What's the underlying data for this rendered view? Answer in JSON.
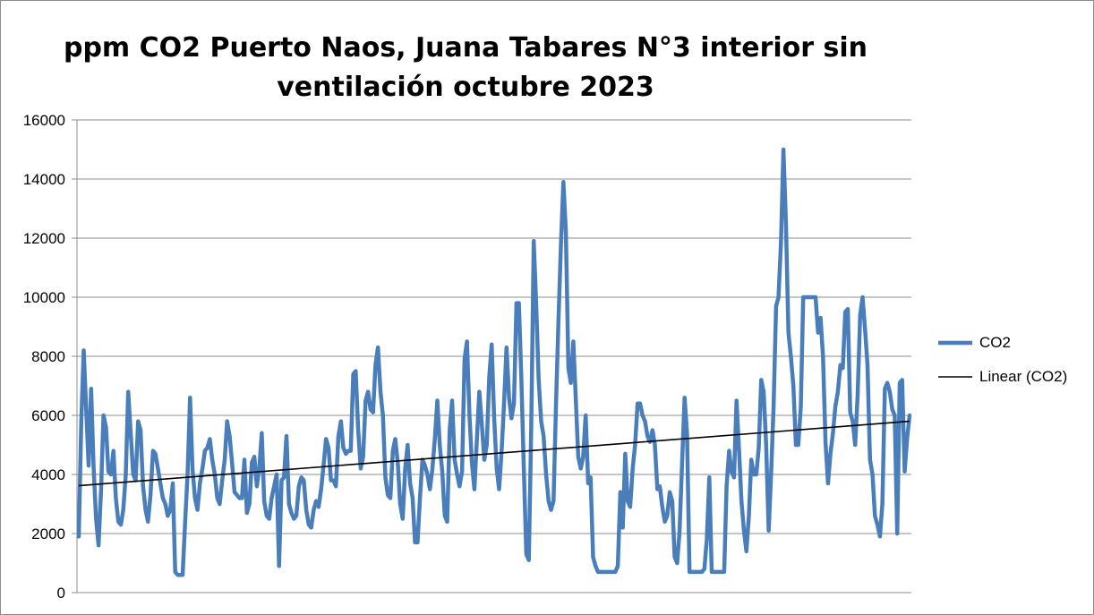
{
  "chart_data": {
    "type": "line",
    "title": "ppm CO2 Puerto Naos, Juana Tabares N°3 interior sin\nventilación octubre 2023",
    "xlabel": "",
    "ylabel": "",
    "ylim": [
      0,
      16000
    ],
    "yticks": [
      0,
      2000,
      4000,
      6000,
      8000,
      10000,
      12000,
      14000,
      16000
    ],
    "grid": true,
    "legend_position": "right",
    "series": [
      {
        "name": "CO2",
        "color": "#4a7ebb",
        "values": [
          1900,
          5800,
          8200,
          6200,
          4300,
          6900,
          4200,
          2500,
          1600,
          3500,
          6000,
          5600,
          4100,
          4000,
          4800,
          3200,
          2400,
          2300,
          2800,
          4000,
          6800,
          5400,
          4000,
          3800,
          5800,
          5500,
          3600,
          2800,
          2400,
          3300,
          4800,
          4700,
          4200,
          3700,
          3200,
          3000,
          2600,
          2800,
          3700,
          700,
          600,
          600,
          600,
          2400,
          4000,
          6600,
          4200,
          3200,
          2800,
          3700,
          4200,
          4800,
          4900,
          5200,
          4500,
          4000,
          3200,
          3000,
          3800,
          4500,
          5800,
          5300,
          4400,
          3400,
          3300,
          3200,
          3200,
          4500,
          2700,
          3000,
          4400,
          4600,
          3600,
          4200,
          5400,
          3100,
          2600,
          2500,
          3200,
          3600,
          4000,
          900,
          3800,
          3900,
          5300,
          3000,
          2700,
          2500,
          2600,
          3600,
          3900,
          3800,
          2800,
          2300,
          2200,
          2800,
          3100,
          2900,
          3500,
          4300,
          5200,
          4900,
          3800,
          3800,
          3600,
          5300,
          5800,
          4900,
          4700,
          4800,
          4800,
          7400,
          7500,
          5500,
          4200,
          4600,
          6500,
          6800,
          6200,
          6100,
          7700,
          8300,
          6800,
          6000,
          3900,
          3300,
          3200,
          4800,
          5200,
          4400,
          3000,
          2500,
          4200,
          5000,
          3700,
          3200,
          1700,
          1700,
          3200,
          4500,
          4300,
          4000,
          3500,
          4200,
          5200,
          6500,
          5000,
          4100,
          2600,
          2400,
          5500,
          6500,
          4500,
          4000,
          3600,
          4100,
          7900,
          8500,
          6000,
          4400,
          3500,
          5200,
          6800,
          5700,
          4500,
          5000,
          7300,
          8400,
          5900,
          4200,
          3500,
          4800,
          6400,
          8300,
          6600,
          5900,
          6400,
          9800,
          9800,
          7200,
          4200,
          1300,
          1100,
          5600,
          11900,
          9700,
          7200,
          5800,
          5300,
          4000,
          3100,
          2800,
          3100,
          6300,
          9200,
          11800,
          13900,
          12200,
          7600,
          7100,
          8500,
          6600,
          4600,
          4200,
          4600,
          6000,
          3700,
          3900,
          1200,
          900,
          700,
          700,
          700,
          700,
          700,
          700,
          700,
          700,
          900,
          3400,
          2200,
          4700,
          3100,
          2900,
          4200,
          5000,
          6400,
          6400,
          6000,
          5800,
          5300,
          5100,
          5500,
          5000,
          3500,
          3600,
          2900,
          2400,
          2600,
          3400,
          3100,
          1200,
          1000,
          2100,
          4400,
          6600,
          5400,
          700,
          700,
          700,
          700,
          700,
          700,
          800,
          1800,
          3900,
          700,
          700,
          700,
          700,
          700,
          700,
          3600,
          4800,
          4100,
          3900,
          6500,
          4900,
          3100,
          2100,
          1400,
          2600,
          4500,
          4000,
          4000,
          4900,
          7200,
          6800,
          5000,
          2100,
          4000,
          6300,
          9700,
          10000,
          11900,
          15000,
          12500,
          8800,
          8000,
          7000,
          5000,
          5000,
          6300,
          10000,
          10000,
          10000,
          10000,
          10000,
          10000,
          8800,
          9300,
          8000,
          5100,
          3700,
          4700,
          5400,
          6300,
          6800,
          7700,
          7600,
          9500,
          9600,
          6100,
          5800,
          5000,
          6700,
          9400,
          10000,
          8900,
          7700,
          4500,
          4000,
          2600,
          2300,
          1900,
          3000,
          6900,
          7100,
          6800,
          6200,
          6000,
          2000,
          7100,
          7200,
          4100,
          5200,
          6000
        ]
      },
      {
        "name": "Linear (CO2)",
        "color": "#000000",
        "values": [
          3620,
          5800
        ]
      }
    ]
  }
}
